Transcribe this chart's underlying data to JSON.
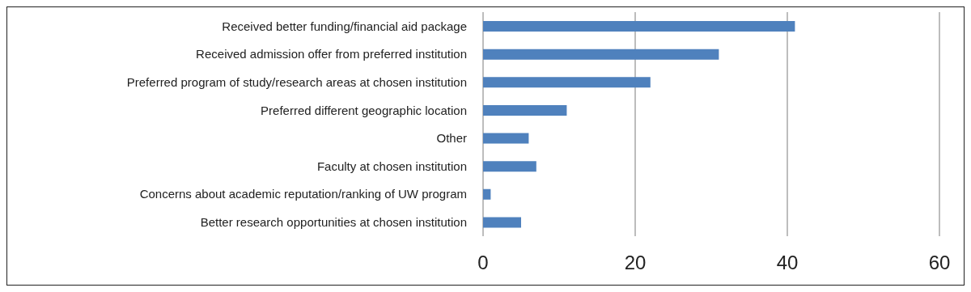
{
  "chart_data": {
    "type": "bar",
    "orientation": "horizontal",
    "categories": [
      "Received better funding/financial aid package",
      "Received admission offer from preferred institution",
      "Preferred program of study/research areas at chosen institution",
      "Preferred different geographic location",
      "Other",
      "Faculty at chosen institution",
      "Concerns about academic reputation/ranking of UW program",
      "Better research opportunities at chosen institution"
    ],
    "values": [
      41,
      31,
      22,
      11,
      6,
      7,
      1,
      5
    ],
    "color": "#4f81bd",
    "xlim": [
      0,
      60
    ],
    "xticks": [
      0,
      20,
      40,
      60
    ],
    "grid": "x",
    "legend": false
  }
}
